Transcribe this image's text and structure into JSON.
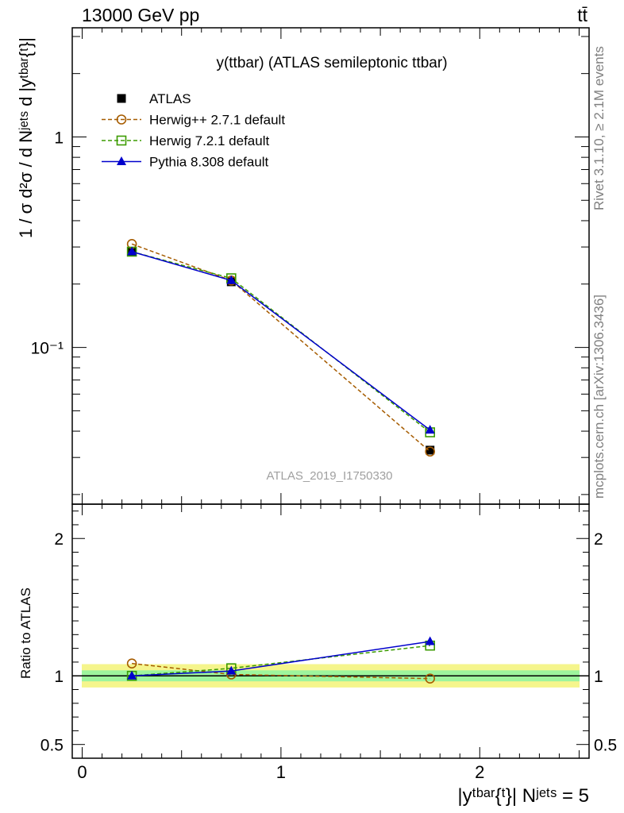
{
  "header": {
    "left": "13000 GeV pp",
    "right": "tt̄"
  },
  "side_labels": {
    "rivet": "Rivet 3.1.10, ≥ 2.1M events",
    "mcplots": "mcplots.cern.ch [arXiv:1306.3436]"
  },
  "chart_data": [
    {
      "type": "scatter",
      "panel": "main",
      "title": "y(ttbar) (ATLAS semileptonic ttbar)",
      "watermark": "ATLAS_2019_I1750330",
      "ylabel": "1 / σ d²σ / d Nʲᵉᵗˢ d |yᵗᵇᵃʳ{ᵗ}|",
      "yscale": "log",
      "ylim": [
        0.018,
        3.3
      ],
      "xlim": [
        -0.05,
        2.55
      ],
      "y_tick_labels": [
        "10⁻¹",
        "1"
      ],
      "legend_position": "top-left",
      "x": [
        0.25,
        0.75,
        1.75
      ],
      "series": [
        {
          "name": "ATLAS",
          "color": "#000000",
          "marker": "filled-square",
          "values": [
            0.285,
            0.205,
            0.0325
          ]
        },
        {
          "name": "Herwig++ 2.7.1 default",
          "color": "#a65c00",
          "marker": "open-circle",
          "dash": true,
          "values": [
            0.31,
            0.208,
            0.032
          ]
        },
        {
          "name": "Herwig 7.2.1 default",
          "color": "#3b9b00",
          "marker": "open-square",
          "dash": true,
          "values": [
            0.285,
            0.213,
            0.0395
          ]
        },
        {
          "name": "Pythia 8.308 default",
          "color": "#0000cc",
          "marker": "filled-triangle",
          "dash": false,
          "values": [
            0.285,
            0.208,
            0.0405
          ]
        }
      ]
    },
    {
      "type": "line",
      "panel": "ratio",
      "ylabel": "Ratio to ATLAS",
      "xlabel": "|yᵗᵇᵃʳ{ᵗ}| Nʲᵉᵗˢ = 5",
      "ylim": [
        0.4,
        2.25
      ],
      "xlim": [
        -0.05,
        2.55
      ],
      "y_tick_labels": [
        "0.5",
        "1",
        "2"
      ],
      "x_tick_labels": [
        "0",
        "1",
        "2"
      ],
      "bands": {
        "outer": 0.085,
        "inner": 0.04
      },
      "x": [
        0.25,
        0.75,
        1.75
      ],
      "series": [
        {
          "name": "Herwig++ 2.7.1 default",
          "values": [
            1.09,
            1.01,
            0.98
          ]
        },
        {
          "name": "Herwig 7.2.1 default",
          "values": [
            1.0,
            1.055,
            1.22
          ]
        },
        {
          "name": "Pythia 8.308 default",
          "values": [
            1.0,
            1.035,
            1.25
          ]
        }
      ]
    }
  ]
}
